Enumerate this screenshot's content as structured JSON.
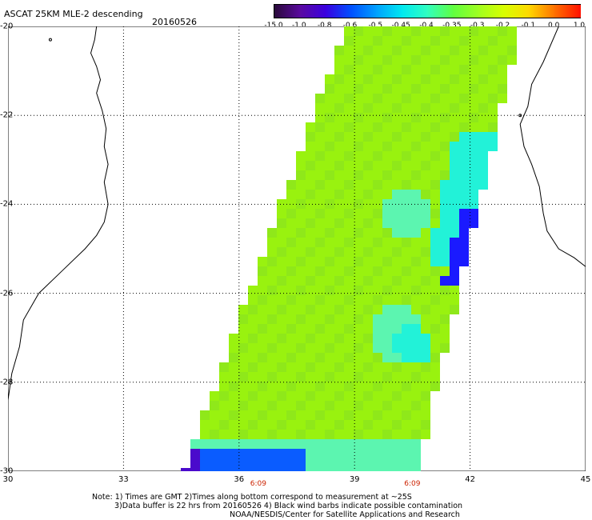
{
  "header": {
    "title": "ASCAT 25KM MLE-2 descending",
    "date": "20160526"
  },
  "colorbar": {
    "labels": [
      "-15.0",
      "-1.0",
      "-0.8",
      "-0.6",
      "-0.5",
      "-0.45",
      "-0.4",
      "-0.35",
      "-0.3",
      "-0.2",
      "-0.1",
      "0.0",
      "1.0"
    ],
    "colors": [
      "#2a0a3a",
      "#5a0aa0",
      "#3a00e0",
      "#0050ff",
      "#00a0ff",
      "#00e8f0",
      "#30ffc0",
      "#60ff40",
      "#a0ff20",
      "#d8ff00",
      "#ffd800",
      "#ff7000",
      "#ff1000"
    ]
  },
  "map": {
    "lat_labels": [
      "-20",
      "-22",
      "-24",
      "-26",
      "-28",
      "-30"
    ],
    "lon_labels": [
      "30",
      "33",
      "36",
      "39",
      "42",
      "45"
    ],
    "time_labels": [
      "6:09",
      "6:09"
    ],
    "swath_colors": {
      "base": "#99f20f",
      "alt1": "#8fe81a",
      "cyan": "#22f2d8",
      "light_cyan": "#5cf5b0",
      "blue": "#0a5cff",
      "deep_blue": "#1a1aff",
      "purple": "#4a0acc"
    }
  },
  "notes": {
    "line1": "Note: 1) Times are GMT 2)Times along bottom correspond to measurement at ~25S",
    "line2": "3)Data buffer is 22 hrs from 20160526 4) Black wind barbs indicate possible contamination",
    "line3": "NOAA/NESDIS/Center for Satellite Applications and Research"
  }
}
